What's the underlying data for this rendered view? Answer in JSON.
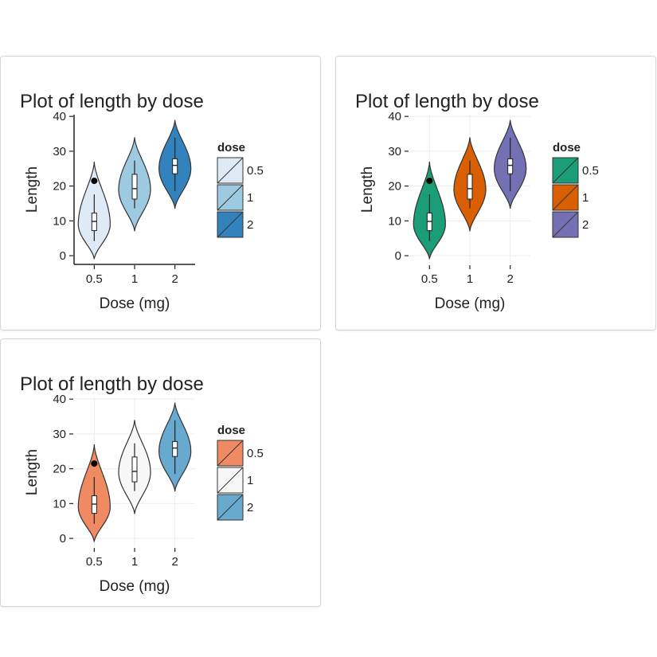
{
  "chart_data": [
    {
      "type": "violin",
      "title": "Plot of length  by dose",
      "x_label": "Dose (mg)",
      "y_label": "Length",
      "categories": [
        "0.5",
        "1",
        "2"
      ],
      "legend_title": "dose",
      "colors": [
        "#deebf7",
        "#9ecae1",
        "#3182bd"
      ],
      "theme": "classic",
      "grid": false,
      "ylim": [
        -2.5,
        40.5
      ],
      "yticks": [
        0,
        10,
        20,
        30,
        40
      ],
      "violins": [
        {
          "min": -1,
          "mode": 9,
          "max": 27
        },
        {
          "min": 7,
          "mode": 19,
          "max": 34
        },
        {
          "min": 13.5,
          "mode": 25,
          "max": 39
        }
      ],
      "boxes": [
        {
          "low": 4.2,
          "q1": 7.2,
          "median": 9.85,
          "q3": 12.25,
          "high": 17.6,
          "outliers": [
            21.5
          ]
        },
        {
          "low": 13.6,
          "q1": 16.25,
          "median": 19.25,
          "q3": 23.375,
          "high": 27.3,
          "outliers": []
        },
        {
          "low": 18.5,
          "q1": 23.525,
          "median": 25.95,
          "q3": 27.825,
          "high": 33.9,
          "outliers": []
        }
      ]
    },
    {
      "type": "violin",
      "title": "Plot of length  by dose",
      "x_label": "Dose (mg)",
      "y_label": "Length",
      "categories": [
        "0.5",
        "1",
        "2"
      ],
      "legend_title": "dose",
      "colors": [
        "#1b9e77",
        "#d95f02",
        "#7570b3"
      ],
      "theme": "minimal",
      "grid": true,
      "ylim": [
        -2.5,
        40.5
      ],
      "yticks": [
        0,
        10,
        20,
        30,
        40
      ],
      "violins": [
        {
          "min": -1,
          "mode": 9,
          "max": 27
        },
        {
          "min": 7,
          "mode": 19,
          "max": 34
        },
        {
          "min": 13.5,
          "mode": 25,
          "max": 39
        }
      ],
      "boxes": [
        {
          "low": 4.2,
          "q1": 7.2,
          "median": 9.85,
          "q3": 12.25,
          "high": 17.6,
          "outliers": [
            21.5
          ]
        },
        {
          "low": 13.6,
          "q1": 16.25,
          "median": 19.25,
          "q3": 23.375,
          "high": 27.3,
          "outliers": []
        },
        {
          "low": 18.5,
          "q1": 23.525,
          "median": 25.95,
          "q3": 27.825,
          "high": 33.9,
          "outliers": []
        }
      ]
    },
    {
      "type": "violin",
      "title": "Plot of length  by dose",
      "x_label": "Dose (mg)",
      "y_label": "Length",
      "categories": [
        "0.5",
        "1",
        "2"
      ],
      "legend_title": "dose",
      "colors": [
        "#ef8a62",
        "#f7f7f7",
        "#67a9cf"
      ],
      "theme": "minimal",
      "grid": true,
      "ylim": [
        -2.5,
        40.5
      ],
      "yticks": [
        0,
        10,
        20,
        30,
        40
      ],
      "violins": [
        {
          "min": -1,
          "mode": 9,
          "max": 27
        },
        {
          "min": 7,
          "mode": 19,
          "max": 34
        },
        {
          "min": 13.5,
          "mode": 25,
          "max": 39
        }
      ],
      "boxes": [
        {
          "low": 4.2,
          "q1": 7.2,
          "median": 9.85,
          "q3": 12.25,
          "high": 17.6,
          "outliers": [
            21.5
          ]
        },
        {
          "low": 13.6,
          "q1": 16.25,
          "median": 19.25,
          "q3": 23.375,
          "high": 27.3,
          "outliers": []
        },
        {
          "low": 18.5,
          "q1": 23.525,
          "median": 25.95,
          "q3": 27.825,
          "high": 33.9,
          "outliers": []
        }
      ]
    }
  ]
}
